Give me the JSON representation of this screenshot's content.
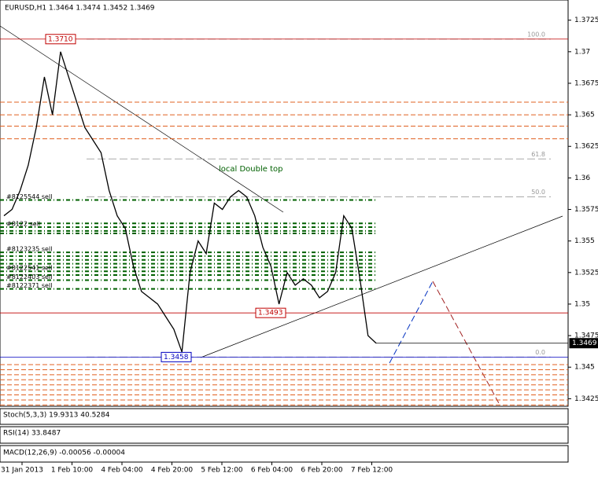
{
  "chart_data": {
    "type": "line",
    "title": "EURUSD,H1  1.3464 1.3474 1.3452 1.3469",
    "annotation": "local Double top",
    "values": [
      1.357,
      1.3575,
      1.359,
      1.361,
      1.364,
      1.368,
      1.365,
      1.37,
      1.368,
      1.366,
      1.364,
      1.363,
      1.362,
      1.359,
      1.357,
      1.356,
      1.353,
      1.351,
      1.3505,
      1.35,
      1.349,
      1.348,
      1.3462,
      1.3525,
      1.355,
      1.354,
      1.358,
      1.3575,
      1.3585,
      1.359,
      1.3585,
      1.357,
      1.3545,
      1.353,
      1.35,
      1.3525,
      1.3515,
      1.352,
      1.3515,
      1.3505,
      1.351,
      1.3525,
      1.357,
      1.356,
      1.352,
      1.3475,
      1.3469
    ],
    "color": "#000000",
    "ylim": [
      1.3419,
      1.3741
    ],
    "yticks": [
      1.3725,
      1.37,
      1.3675,
      1.365,
      1.3625,
      1.36,
      1.3575,
      1.355,
      1.3525,
      1.35,
      1.3475,
      1.345,
      1.3425
    ],
    "xticks": [
      "31 Jan 2013",
      "1 Feb 10:00",
      "4 Feb 04:00",
      "4 Feb 20:00",
      "5 Feb 12:00",
      "6 Feb 04:00",
      "6 Feb 20:00",
      "7 Feb 12:00"
    ],
    "price_levels": [
      {
        "value": 1.371,
        "label": "1.3710",
        "color": "#c00000"
      },
      {
        "value": 1.3493,
        "label": "1.3493",
        "color": "#c00000"
      },
      {
        "value": 1.3458,
        "label": "1.3458",
        "color": "#0000c0"
      },
      {
        "value": 1.3469,
        "label": "1.3469",
        "color": "#000000"
      }
    ],
    "fib_levels": [
      {
        "value": 1.371,
        "label": "100.0"
      },
      {
        "value": 1.3615,
        "label": "61.8"
      },
      {
        "value": 1.3585,
        "label": "50.0"
      },
      {
        "value": 1.3458,
        "label": "0.0"
      }
    ],
    "sell_orders": [
      {
        "value": 1.35825,
        "label": "#8125544 sell"
      },
      {
        "value": 1.3561,
        "label": "#8122 sell"
      },
      {
        "value": 1.3541,
        "label": "#8123235 sell"
      },
      {
        "value": 1.3526,
        "label": "#8122541 sell"
      },
      {
        "value": 1.3519,
        "label": "#8122403 sell"
      },
      {
        "value": 1.3512,
        "label": "#8122371 sell"
      }
    ],
    "orange_levels": [
      1.366,
      1.365,
      1.3641,
      1.3631,
      1.3452,
      1.3448,
      1.3444,
      1.344,
      1.3436,
      1.3432,
      1.3428,
      1.3424,
      1.342
    ],
    "orange_color": "#e06020",
    "green_levels": [
      1.35825,
      1.3564,
      1.3561,
      1.3558,
      1.3556,
      1.3541,
      1.3538,
      1.3535,
      1.3532,
      1.3529,
      1.3526,
      1.3523,
      1.3519,
      1.3512
    ],
    "green_color": "#006000",
    "indicators": [
      "Stoch(5,3,3) 19.9313 40.5284",
      "RSI(14) 33.8487",
      "MACD(12,26,9) -0.00056 -0.00004"
    ]
  }
}
